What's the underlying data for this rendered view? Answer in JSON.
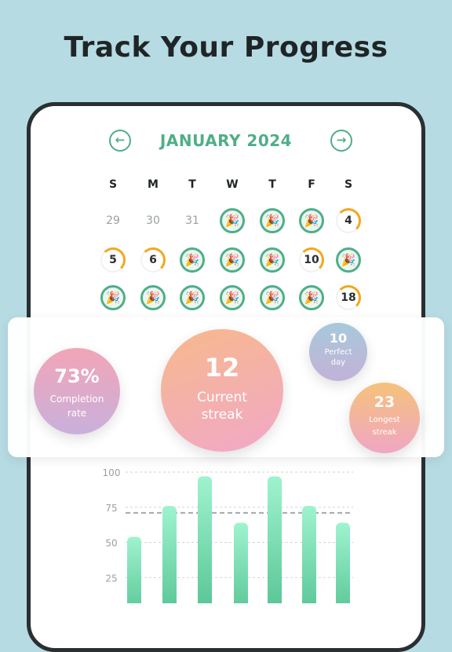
{
  "headline": "Track Your Progress",
  "calendar": {
    "month": "JANUARY 2024",
    "prev_icon": "arrow-left-icon",
    "next_icon": "arrow-right-icon",
    "weekdays": [
      "S",
      "M",
      "T",
      "W",
      "T",
      "F",
      "S"
    ],
    "completed_icon": "party-popper-icon",
    "completed_glyph": "🎉",
    "rows": [
      [
        {
          "label": "29",
          "state": "other-month"
        },
        {
          "label": "30",
          "state": "other-month"
        },
        {
          "label": "31",
          "state": "other-month"
        },
        {
          "label": "",
          "state": "completed"
        },
        {
          "label": "",
          "state": "completed"
        },
        {
          "label": "",
          "state": "completed"
        },
        {
          "label": "4",
          "state": "partial"
        }
      ],
      [
        {
          "label": "5",
          "state": "partial"
        },
        {
          "label": "6",
          "state": "partial"
        },
        {
          "label": "",
          "state": "completed"
        },
        {
          "label": "",
          "state": "completed"
        },
        {
          "label": "",
          "state": "completed"
        },
        {
          "label": "10",
          "state": "partial"
        },
        {
          "label": "",
          "state": "completed"
        }
      ],
      [
        {
          "label": "",
          "state": "completed"
        },
        {
          "label": "",
          "state": "completed"
        },
        {
          "label": "",
          "state": "completed"
        },
        {
          "label": "",
          "state": "completed"
        },
        {
          "label": "",
          "state": "completed"
        },
        {
          "label": "",
          "state": "completed"
        },
        {
          "label": "18",
          "state": "partial"
        }
      ]
    ]
  },
  "stats": {
    "completion": {
      "value": "73%",
      "label_line1": "Completion",
      "label_line2": "rate"
    },
    "current_streak": {
      "value": "12",
      "label_line1": "Current",
      "label_line2": "streak"
    },
    "perfect_day": {
      "value": "10",
      "label_line1": "Perfect",
      "label_line2": "day"
    },
    "longest_streak": {
      "value": "23",
      "label_line1": "Longest",
      "label_line2": "streak"
    }
  },
  "colors": {
    "accent": "#4fae88",
    "partial": "#f2a81d",
    "bar_top": "#9ff3cf",
    "bar_bottom": "#4fbf8e",
    "background": "#b7dbe3"
  },
  "chart_data": {
    "type": "bar",
    "y_ticks": [
      100,
      75,
      50,
      25
    ],
    "ylim": [
      0,
      100
    ],
    "values": [
      54,
      76,
      97,
      64,
      97,
      76,
      64
    ],
    "reference_line": 71,
    "grid": true
  }
}
